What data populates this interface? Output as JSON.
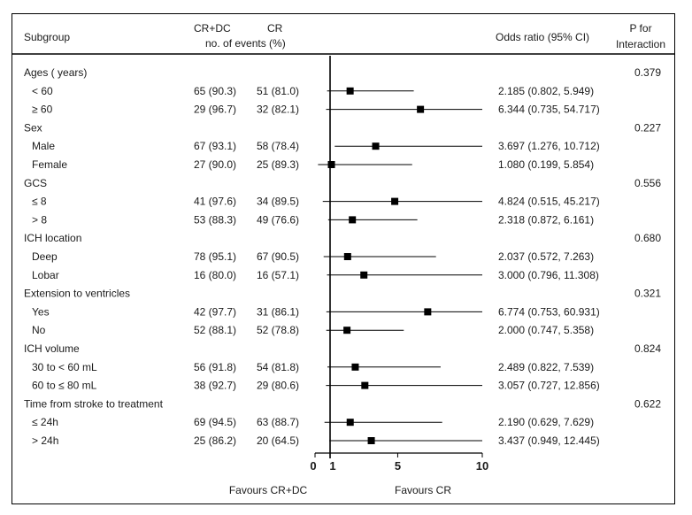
{
  "header": {
    "subgroup": "Subgroup",
    "arm1": "CR+DC",
    "arm2": "CR",
    "events": "no. of events (%)",
    "or_label": "Odds ratio (95% CI)",
    "p_line1": "P for",
    "p_line2": "Interaction"
  },
  "chart_data": {
    "type": "forest",
    "x_ticks": [
      "0",
      "1",
      "5",
      "10"
    ],
    "xlim": [
      0,
      10
    ],
    "reference_line": 1,
    "favours_left": "Favours CR+DC",
    "favours_right": "Favours CR",
    "rows": [
      {
        "kind": "group",
        "label": "Ages ( years)",
        "p": "0.379"
      },
      {
        "kind": "item",
        "label": "< 60",
        "arm1": "65 (90.3)",
        "arm2": "51 (81.0)",
        "or_text": "2.185 (0.802, 5.949)",
        "or": 2.185,
        "lo": 0.802,
        "hi": 5.949
      },
      {
        "kind": "item",
        "label": "≥ 60",
        "arm1": "29 (96.7)",
        "arm2": "32 (82.1)",
        "or_text": "6.344 (0.735, 54.717)",
        "or": 6.344,
        "lo": 0.735,
        "hi": 54.717
      },
      {
        "kind": "group",
        "label": "Sex",
        "p": "0.227"
      },
      {
        "kind": "item",
        "label": "Male",
        "arm1": "67 (93.1)",
        "arm2": "58 (78.4)",
        "or_text": "3.697 (1.276, 10.712)",
        "or": 3.697,
        "lo": 1.276,
        "hi": 10.712
      },
      {
        "kind": "item",
        "label": "Female",
        "arm1": "27 (90.0)",
        "arm2": "25 (89.3)",
        "or_text": "1.080 (0.199, 5.854)",
        "or": 1.08,
        "lo": 0.199,
        "hi": 5.854
      },
      {
        "kind": "group",
        "label": "GCS",
        "p": "0.556"
      },
      {
        "kind": "item",
        "label": "≤ 8",
        "arm1": "41 (97.6)",
        "arm2": "34 (89.5)",
        "or_text": "4.824 (0.515, 45.217)",
        "or": 4.824,
        "lo": 0.515,
        "hi": 45.217
      },
      {
        "kind": "item",
        "label": "> 8",
        "arm1": "53 (88.3)",
        "arm2": "49 (76.6)",
        "or_text": "2.318 (0.872, 6.161)",
        "or": 2.318,
        "lo": 0.872,
        "hi": 6.161
      },
      {
        "kind": "group",
        "label": "ICH location",
        "p": "0.680"
      },
      {
        "kind": "item",
        "label": "Deep",
        "arm1": "78 (95.1)",
        "arm2": "67 (90.5)",
        "or_text": "2.037 (0.572, 7.263)",
        "or": 2.037,
        "lo": 0.572,
        "hi": 7.263
      },
      {
        "kind": "item",
        "label": "Lobar",
        "arm1": "16 (80.0)",
        "arm2": "16 (57.1)",
        "or_text": "3.000 (0.796, 11.308)",
        "or": 3.0,
        "lo": 0.796,
        "hi": 11.308
      },
      {
        "kind": "group",
        "label": "Extension to ventricles",
        "p": "0.321"
      },
      {
        "kind": "item",
        "label": "Yes",
        "arm1": "42 (97.7)",
        "arm2": "31 (86.1)",
        "or_text": "6.774 (0.753, 60.931)",
        "or": 6.774,
        "lo": 0.753,
        "hi": 60.931
      },
      {
        "kind": "item",
        "label": "No",
        "arm1": "52 (88.1)",
        "arm2": "52 (78.8)",
        "or_text": "2.000 (0.747, 5.358)",
        "or": 2.0,
        "lo": 0.747,
        "hi": 5.358
      },
      {
        "kind": "group",
        "label": "ICH volume",
        "p": "0.824"
      },
      {
        "kind": "item",
        "label": "30 to < 60 mL",
        "arm1": "56 (91.8)",
        "arm2": "54 (81.8)",
        "or_text": "2.489 (0.822, 7.539)",
        "or": 2.489,
        "lo": 0.822,
        "hi": 7.539
      },
      {
        "kind": "item",
        "label": "60 to ≤ 80 mL",
        "arm1": "38 (92.7)",
        "arm2": "29 (80.6)",
        "or_text": "3.057 (0.727, 12.856)",
        "or": 3.057,
        "lo": 0.727,
        "hi": 12.856
      },
      {
        "kind": "group",
        "label": "Time from stroke to treatment",
        "p": "0.622"
      },
      {
        "kind": "item",
        "label": "≤ 24h",
        "arm1": "69 (94.5)",
        "arm2": "63 (88.7)",
        "or_text": "2.190 (0.629, 7.629)",
        "or": 2.19,
        "lo": 0.629,
        "hi": 7.629
      },
      {
        "kind": "item",
        "label": "> 24h",
        "arm1": "25 (86.2)",
        "arm2": "20 (64.5)",
        "or_text": "3.437 (0.949, 12.445)",
        "or": 3.437,
        "lo": 0.949,
        "hi": 12.445
      }
    ]
  }
}
